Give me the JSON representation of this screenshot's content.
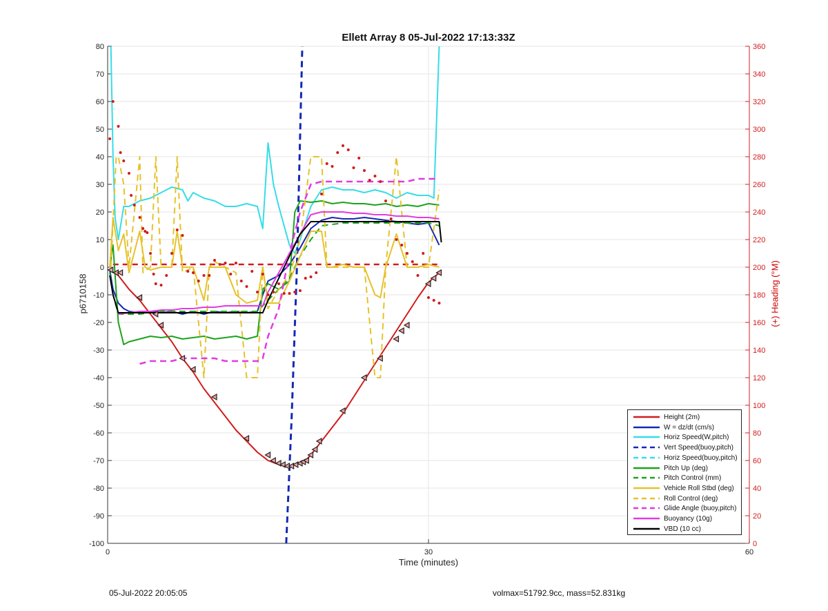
{
  "page": {
    "footer_left": "05-Jul-2022 20:05:05",
    "footer_right": "volmax=51792.9cc, mass=52.831kg"
  },
  "chart_data": {
    "type": "line",
    "title": "Ellett Array 8 05-Jul-2022 17:13:33Z",
    "xlabel": "Time (minutes)",
    "ylabel": "p6710158",
    "y2label": "(+) Heading (°M)",
    "xlim": [
      0,
      60
    ],
    "ylim": [
      -100,
      80
    ],
    "y2lim": [
      0,
      360
    ],
    "xticks": [
      0,
      30,
      60
    ],
    "yticks": [
      80,
      70,
      60,
      50,
      40,
      30,
      20,
      10,
      0,
      -10,
      -20,
      -30,
      -40,
      -50,
      -60,
      -70,
      -80,
      -90,
      -100
    ],
    "y2ticks": [
      360,
      340,
      320,
      300,
      280,
      260,
      240,
      220,
      200,
      180,
      160,
      140,
      120,
      100,
      80,
      60,
      40,
      20,
      0
    ],
    "grid": true,
    "legend_position": "bottom-right",
    "colors": {
      "red": "#d01c1c",
      "blue": "#1428b4",
      "cyan": "#35dde6",
      "green": "#1ba31b",
      "yellow": "#e6c22a",
      "magenta": "#e23ae2",
      "black": "#000000"
    },
    "series": [
      {
        "name": "Height (2m)",
        "color": "red",
        "dash": false,
        "width": 2,
        "x": [
          0.2,
          0.6,
          1,
          2,
          3,
          4,
          5,
          6,
          7,
          8,
          9,
          10,
          11,
          12,
          13,
          14,
          15,
          16,
          16.8,
          17.3,
          18,
          18.5,
          19,
          20,
          21,
          22,
          23,
          24,
          25,
          26,
          27,
          28,
          29,
          30,
          31,
          31.2
        ],
        "y": [
          -1,
          -2,
          -3,
          -8,
          -12,
          -17,
          -22,
          -27,
          -33,
          -38,
          -44,
          -49,
          -54,
          -59,
          -63,
          -67,
          -70,
          -71.5,
          -72,
          -71.8,
          -71,
          -70,
          -68,
          -63,
          -58,
          -53,
          -47,
          -41,
          -35,
          -29,
          -23,
          -17,
          -11,
          -5.5,
          -2,
          -1
        ]
      },
      {
        "name": "W = dz/dt (cm/s)",
        "color": "blue",
        "dash": false,
        "width": 2,
        "x": [
          0.2,
          0.5,
          1,
          1.5,
          2,
          3,
          4,
          5,
          6,
          7,
          8,
          9,
          10,
          11,
          12,
          13,
          14,
          14.5,
          15,
          16,
          17,
          18,
          19,
          20,
          21,
          22,
          23,
          24,
          25,
          26,
          27,
          28,
          29,
          30,
          31
        ],
        "y": [
          -1,
          -8,
          -13,
          -15,
          -16,
          -16.5,
          -16,
          -16.5,
          -16,
          -17,
          -16,
          -17,
          -16,
          -16.5,
          -16,
          -16.5,
          -16,
          -10,
          -5,
          -3,
          1,
          7,
          14,
          17,
          18,
          17.5,
          17.5,
          18,
          17.5,
          17,
          16.5,
          16,
          15.5,
          16,
          8
        ]
      },
      {
        "name": "Horiz Speed(W,pitch)",
        "color": "cyan",
        "dash": false,
        "width": 2,
        "x": [
          0.3,
          0.5,
          0.7,
          1,
          1.5,
          2,
          3,
          4,
          5,
          6,
          7,
          7.5,
          8,
          9,
          10,
          11,
          12,
          13,
          14,
          14.5,
          15,
          15.5,
          16,
          17,
          17.5,
          18,
          19,
          20,
          21,
          22,
          23,
          24,
          25,
          26,
          27,
          28,
          29,
          30,
          30.5,
          31
        ],
        "y": [
          80,
          40,
          18,
          10,
          22,
          22,
          24,
          25,
          27,
          29,
          28,
          24,
          27,
          25,
          24,
          22,
          22,
          23,
          22,
          14,
          45,
          30,
          22,
          8,
          5,
          10,
          22,
          28,
          29,
          28,
          28,
          27,
          28,
          27,
          25,
          27,
          26,
          26,
          25,
          80
        ]
      },
      {
        "name": "Vert Speed(buoy,pitch)",
        "color": "blue",
        "dash": true,
        "width": 3,
        "x": [
          16.7,
          17.2,
          17.7,
          18.2
        ],
        "y": [
          -100,
          -55,
          0,
          80
        ]
      },
      {
        "name": "Horiz Speed(buoy,pitch)",
        "color": "cyan",
        "dash": true,
        "width": 2,
        "x": [],
        "y": []
      },
      {
        "name": "Pitch Up (deg)",
        "color": "green",
        "dash": false,
        "width": 2,
        "x": [
          0.2,
          0.5,
          1,
          1.5,
          2,
          3,
          4,
          5,
          6,
          7,
          8,
          9,
          10,
          11,
          12,
          13,
          14,
          14.5,
          15,
          16,
          17,
          17.5,
          18,
          19,
          20,
          21,
          22,
          23,
          24,
          25,
          26,
          27,
          28,
          29,
          30,
          31
        ],
        "y": [
          0,
          8,
          -20,
          -28,
          -27,
          -26,
          -25,
          -25.5,
          -25,
          -26,
          -25.5,
          -25,
          -26,
          -25.5,
          -25,
          -26,
          -25,
          -8,
          -6,
          -8,
          -5,
          20,
          24,
          23.5,
          24,
          23,
          23.5,
          23,
          23,
          22.5,
          23,
          22,
          22.5,
          22,
          23,
          22.5
        ]
      },
      {
        "name": "Pitch Control (mm)",
        "color": "green",
        "dash": true,
        "width": 2,
        "x": [
          0.2,
          0.5,
          1,
          3,
          5,
          7,
          9,
          11,
          13,
          14,
          14.5,
          15,
          16,
          17,
          18,
          19,
          20,
          22,
          24,
          26,
          28,
          30,
          31
        ],
        "y": [
          -2,
          -10,
          -17,
          -17,
          -16,
          -16,
          -16,
          -16,
          -16,
          -16,
          -14,
          -12,
          -8,
          -4,
          4,
          10,
          15,
          16,
          16,
          16,
          16,
          16,
          15
        ]
      },
      {
        "name": "Vehicle Roll Stbd (deg)",
        "color": "yellow",
        "dash": false,
        "width": 2,
        "x": [
          0.2,
          0.5,
          1,
          1.5,
          2,
          3,
          3.5,
          4,
          5,
          6,
          6.5,
          7,
          8,
          9,
          9.5,
          10,
          11,
          12,
          13,
          14,
          14.5,
          15,
          16,
          17,
          18,
          19,
          20,
          20.5,
          21,
          22,
          23,
          24,
          25,
          25.5,
          26,
          27,
          28,
          29,
          30,
          31
        ],
        "y": [
          0,
          18,
          6,
          12,
          -2,
          13,
          0,
          -1,
          0,
          0,
          13,
          0,
          0,
          -12,
          0,
          0,
          0,
          -10,
          -13,
          -12,
          0,
          -13,
          -13,
          -5,
          4,
          13,
          13,
          0,
          0,
          1,
          0,
          0,
          -10,
          -11,
          0,
          12,
          0,
          0,
          1,
          0
        ]
      },
      {
        "name": "Roll Control (deg)",
        "color": "yellow",
        "dash": true,
        "width": 2,
        "x": [
          0.3,
          0.8,
          1,
          1.5,
          2,
          3,
          3.3,
          4,
          4.5,
          5,
          6,
          6.5,
          7,
          8,
          9,
          9.5,
          10,
          11,
          12,
          13,
          14,
          14.5,
          15,
          16,
          17,
          18,
          19,
          20,
          20.5,
          21,
          22,
          23,
          24,
          25,
          25.5,
          26,
          27,
          28,
          29,
          30,
          31
        ],
        "y": [
          0,
          40,
          40,
          30,
          0,
          40,
          -2,
          0,
          40,
          0,
          0,
          40,
          -2,
          0,
          -40,
          0,
          2,
          0,
          -2,
          -40,
          -40,
          0,
          -15,
          -8,
          -3,
          10,
          40,
          40,
          0,
          0,
          0,
          0,
          0,
          -40,
          -40,
          0,
          40,
          0,
          0,
          0,
          28
        ]
      },
      {
        "name": "Glide Angle (buoy,pitch)",
        "color": "magenta",
        "dash": true,
        "width": 2.5,
        "x": [
          3,
          4,
          5,
          6,
          7,
          8,
          9,
          10,
          11,
          12,
          13,
          14,
          14.5,
          15,
          16,
          17,
          18,
          19,
          20,
          21,
          22,
          23,
          24,
          25,
          26,
          27,
          28,
          29,
          30,
          31
        ],
        "y": [
          -35,
          -34,
          -34,
          -34,
          -33,
          -33,
          -33,
          -33,
          -34,
          -34,
          -34,
          -34,
          -33,
          -25,
          -15,
          5,
          20,
          30,
          31,
          31,
          31,
          31,
          31,
          31,
          31,
          31,
          31,
          32,
          32,
          32
        ]
      },
      {
        "name": "Buoyancy (10g)",
        "color": "magenta",
        "dash": false,
        "width": 2,
        "x": [
          1,
          2,
          3,
          4,
          5,
          6,
          7,
          8,
          9,
          10,
          11,
          12,
          13,
          14,
          14.5,
          15,
          16,
          17,
          18,
          19,
          20,
          21,
          22,
          23,
          24,
          25,
          26,
          27,
          28,
          29,
          30,
          31
        ],
        "y": [
          -17,
          -16.5,
          -16,
          -16,
          -15.5,
          -15.5,
          -15,
          -15,
          -14.5,
          -14.5,
          -14,
          -14,
          -14,
          -14,
          -14,
          -9,
          -2,
          5,
          12,
          19,
          20,
          20,
          20,
          19.5,
          19.5,
          19,
          19,
          18.5,
          18.5,
          18,
          18,
          17.5
        ]
      },
      {
        "name": "VBD (10 cc)",
        "color": "black",
        "dash": false,
        "width": 2,
        "x": [
          0.2,
          0.5,
          1,
          3,
          5,
          7,
          9,
          11,
          13,
          14.5,
          15,
          16,
          17,
          18,
          19,
          20,
          22,
          24,
          26,
          28,
          30,
          31,
          31.2
        ],
        "y": [
          -3,
          -10,
          -16.5,
          -16.5,
          -16.5,
          -16.5,
          -16.5,
          -16.5,
          -16.5,
          -16.5,
          -12,
          -4,
          4,
          12,
          16.5,
          16.5,
          16.5,
          16.5,
          16.5,
          16.5,
          16.5,
          16.5,
          9
        ]
      }
    ],
    "heading_reference": {
      "axis": "right",
      "color": "red",
      "dash": true,
      "x": [
        0.5,
        31
      ],
      "y2": [
        202,
        202
      ]
    },
    "heading_points": {
      "axis": "right",
      "color": "red",
      "x": [
        0.2,
        0.5,
        1,
        1.2,
        1.5,
        2,
        2.2,
        2.5,
        3,
        3.3,
        3.5,
        3.7,
        4,
        4.3,
        4.5,
        5,
        5.5,
        6,
        6.5,
        7,
        7.5,
        8,
        8.5,
        9,
        9.5,
        10,
        10.5,
        11,
        11.5,
        12,
        12.5,
        13,
        13.5,
        14,
        14.5,
        15,
        15.5,
        16,
        16.5,
        17,
        17.5,
        18,
        18.5,
        19,
        19.5,
        20,
        20.5,
        21,
        21.5,
        22,
        22.5,
        23,
        23.5,
        24,
        24.5,
        25,
        25.5,
        26,
        26.5,
        27,
        27.5,
        28,
        28.5,
        29,
        29.5,
        30,
        30.5,
        31
      ],
      "y2": [
        293,
        320,
        302,
        283,
        277,
        268,
        252,
        245,
        236,
        228,
        226,
        225,
        210,
        195,
        188,
        187,
        194,
        210,
        227,
        223,
        197,
        196,
        190,
        194,
        194,
        205,
        202,
        203,
        195,
        203,
        190,
        186,
        197,
        182,
        195,
        180,
        182,
        188,
        181,
        181,
        182,
        183,
        192,
        193,
        196,
        253,
        275,
        273,
        283,
        288,
        285,
        272,
        279,
        270,
        263,
        266,
        262,
        248,
        235,
        220,
        216,
        210,
        204,
        194,
        210,
        178,
        176,
        174
      ]
    },
    "markers": {
      "color": "red",
      "x": [
        0.3,
        0.8,
        1.2,
        3,
        4.5,
        5,
        7,
        8,
        10,
        13,
        15,
        15.5,
        16,
        16.4,
        16.8,
        17.2,
        17.6,
        18,
        18.3,
        18.6,
        19,
        19.4,
        19.8,
        22,
        24,
        25.5,
        27,
        27.5,
        28,
        30,
        30.5,
        31
      ],
      "y": [
        -1,
        -2,
        -2,
        -11,
        -17,
        -21,
        -33,
        -37,
        -47,
        -62,
        -68,
        -70,
        -71,
        -71.5,
        -72,
        -72,
        -71.5,
        -71,
        -70.5,
        -70,
        -68,
        -66,
        -63,
        -52,
        -40,
        -33,
        -26,
        -23,
        -21,
        -6,
        -4,
        -2
      ]
    },
    "legend_entries": [
      "Height (2m)",
      "W = dz/dt (cm/s)",
      "Horiz Speed(W,pitch)",
      "Vert Speed(buoy,pitch)",
      "Horiz Speed(buoy,pitch)",
      "Pitch Up (deg)",
      "Pitch Control (mm)",
      "Vehicle Roll Stbd (deg)",
      "Roll Control (deg)",
      "Glide Angle (buoy,pitch)",
      "Buoyancy (10g)",
      "VBD (10 cc)"
    ]
  }
}
